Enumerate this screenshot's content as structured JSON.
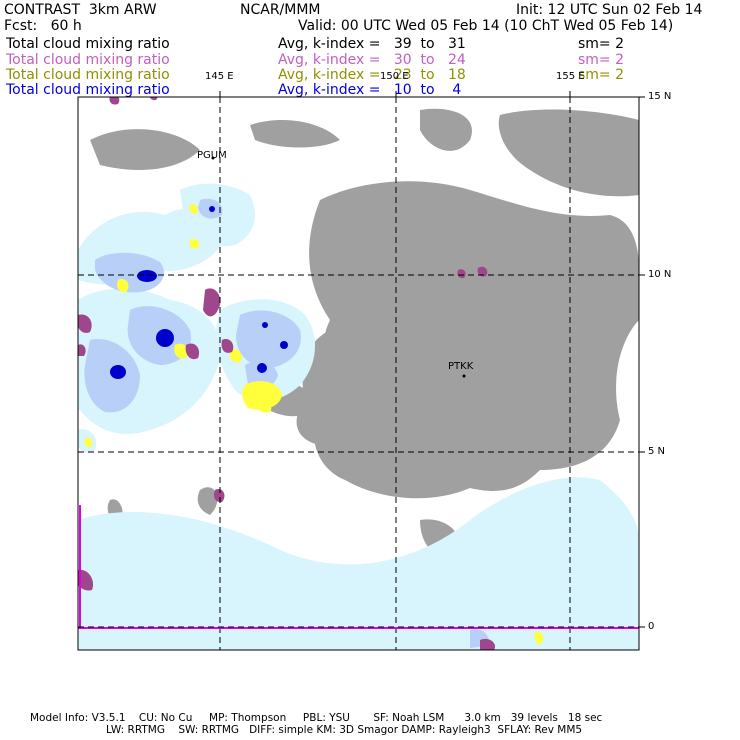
{
  "header": {
    "model": "CONTRAST  3km ARW",
    "org": "NCAR/MMM",
    "init": "Init: 12 UTC Sun 02 Feb 14",
    "fcst": "Fcst:   60 h",
    "valid": "Valid: 00 UTC Wed 05 Feb 14 (10 ChT Wed 05 Feb 14)"
  },
  "legend": [
    {
      "field": "Total cloud mixing ratio",
      "stat": "Avg, k-index =   39  to   31",
      "sm": "sm= 2",
      "color": "#000000"
    },
    {
      "field": "Total cloud mixing ratio",
      "stat": "Avg, k-index =   30  to   24",
      "sm": "sm= 2",
      "color": "#c060c0"
    },
    {
      "field": "Total cloud mixing ratio",
      "stat": "Avg, k-index =   23  to   18",
      "sm": "sm= 2",
      "color": "#909000"
    },
    {
      "field": "Total cloud mixing ratio",
      "stat": "Avg, k-index =   10  to    4",
      "sm": "",
      "color": "#0000e0"
    }
  ],
  "map": {
    "lon_labels": [
      "145 E",
      "150 E",
      "155 E"
    ],
    "lat_labels": [
      "15 N",
      "10 N",
      "5 N",
      "0"
    ],
    "stations": [
      "PGUM",
      "PTKK"
    ],
    "colors": {
      "high_cloud": "#a0a0a0",
      "mid_cloud": "#a0468c",
      "low_cloud": "#ffff3c",
      "shallow_light": "#d8f4fc",
      "shallow_mid": "#b8d0f8",
      "shallow_dark": "#0000cc",
      "equator_line": "#e000e0"
    }
  },
  "footer": {
    "line1": "Model Info: V3.5.1    CU: No Cu     MP: Thompson     PBL: YSU       SF: Noah LSM      3.0 km   39 levels   18 sec",
    "line2": "LW: RRTMG    SW: RRTMG   DIFF: simple KM: 3D Smagor DAMP: Rayleigh3  SFLAY: Rev MM5"
  }
}
